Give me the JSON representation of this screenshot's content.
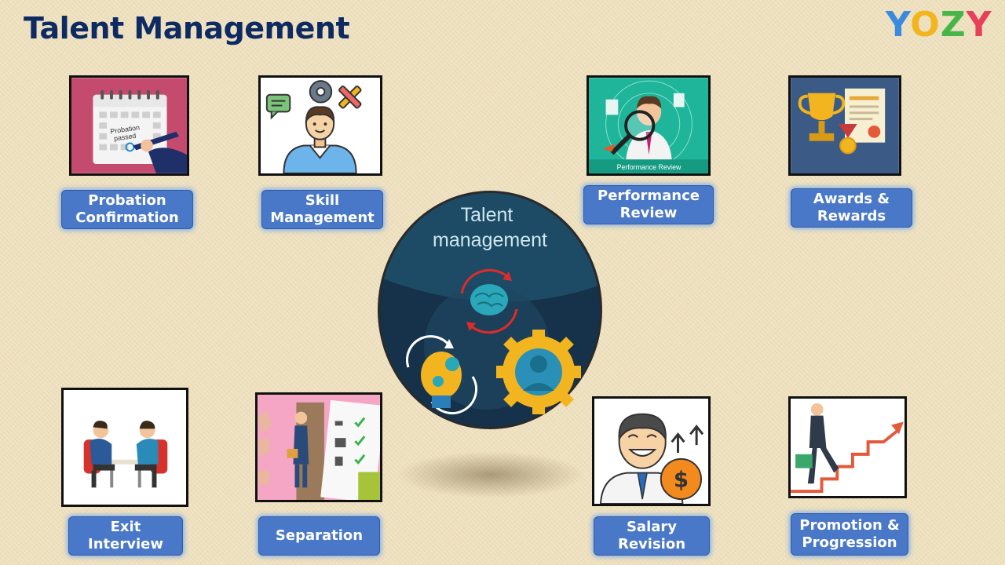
{
  "header": {
    "title": "Talent Management",
    "logo_letters": [
      "Y",
      "O",
      "Z",
      "Y"
    ]
  },
  "center": {
    "line1": "Talent",
    "line2": "management"
  },
  "nodes": [
    {
      "id": "probation",
      "label_lines": [
        "Probation",
        "Confirmation"
      ],
      "image_text": [
        "Probation",
        "passed"
      ]
    },
    {
      "id": "skill",
      "label_lines": [
        "Skill",
        "Management"
      ]
    },
    {
      "id": "performance",
      "label_lines": [
        "Performance",
        "Review"
      ],
      "image_text": "Performance Review"
    },
    {
      "id": "awards",
      "label_lines": [
        "Awards &",
        "Rewards"
      ]
    },
    {
      "id": "exit",
      "label_lines": [
        "Exit",
        "Interview"
      ]
    },
    {
      "id": "separation",
      "label_lines": [
        "Separation"
      ]
    },
    {
      "id": "salary",
      "label_lines": [
        "Salary",
        "Revision"
      ]
    },
    {
      "id": "promotion",
      "label_lines": [
        "Promotion &",
        "Progression"
      ]
    }
  ],
  "colors": {
    "title": "#0e2a63",
    "label_fill": "#4a78c8",
    "background": "#f0e2c0",
    "center_bg": "#16324a"
  }
}
